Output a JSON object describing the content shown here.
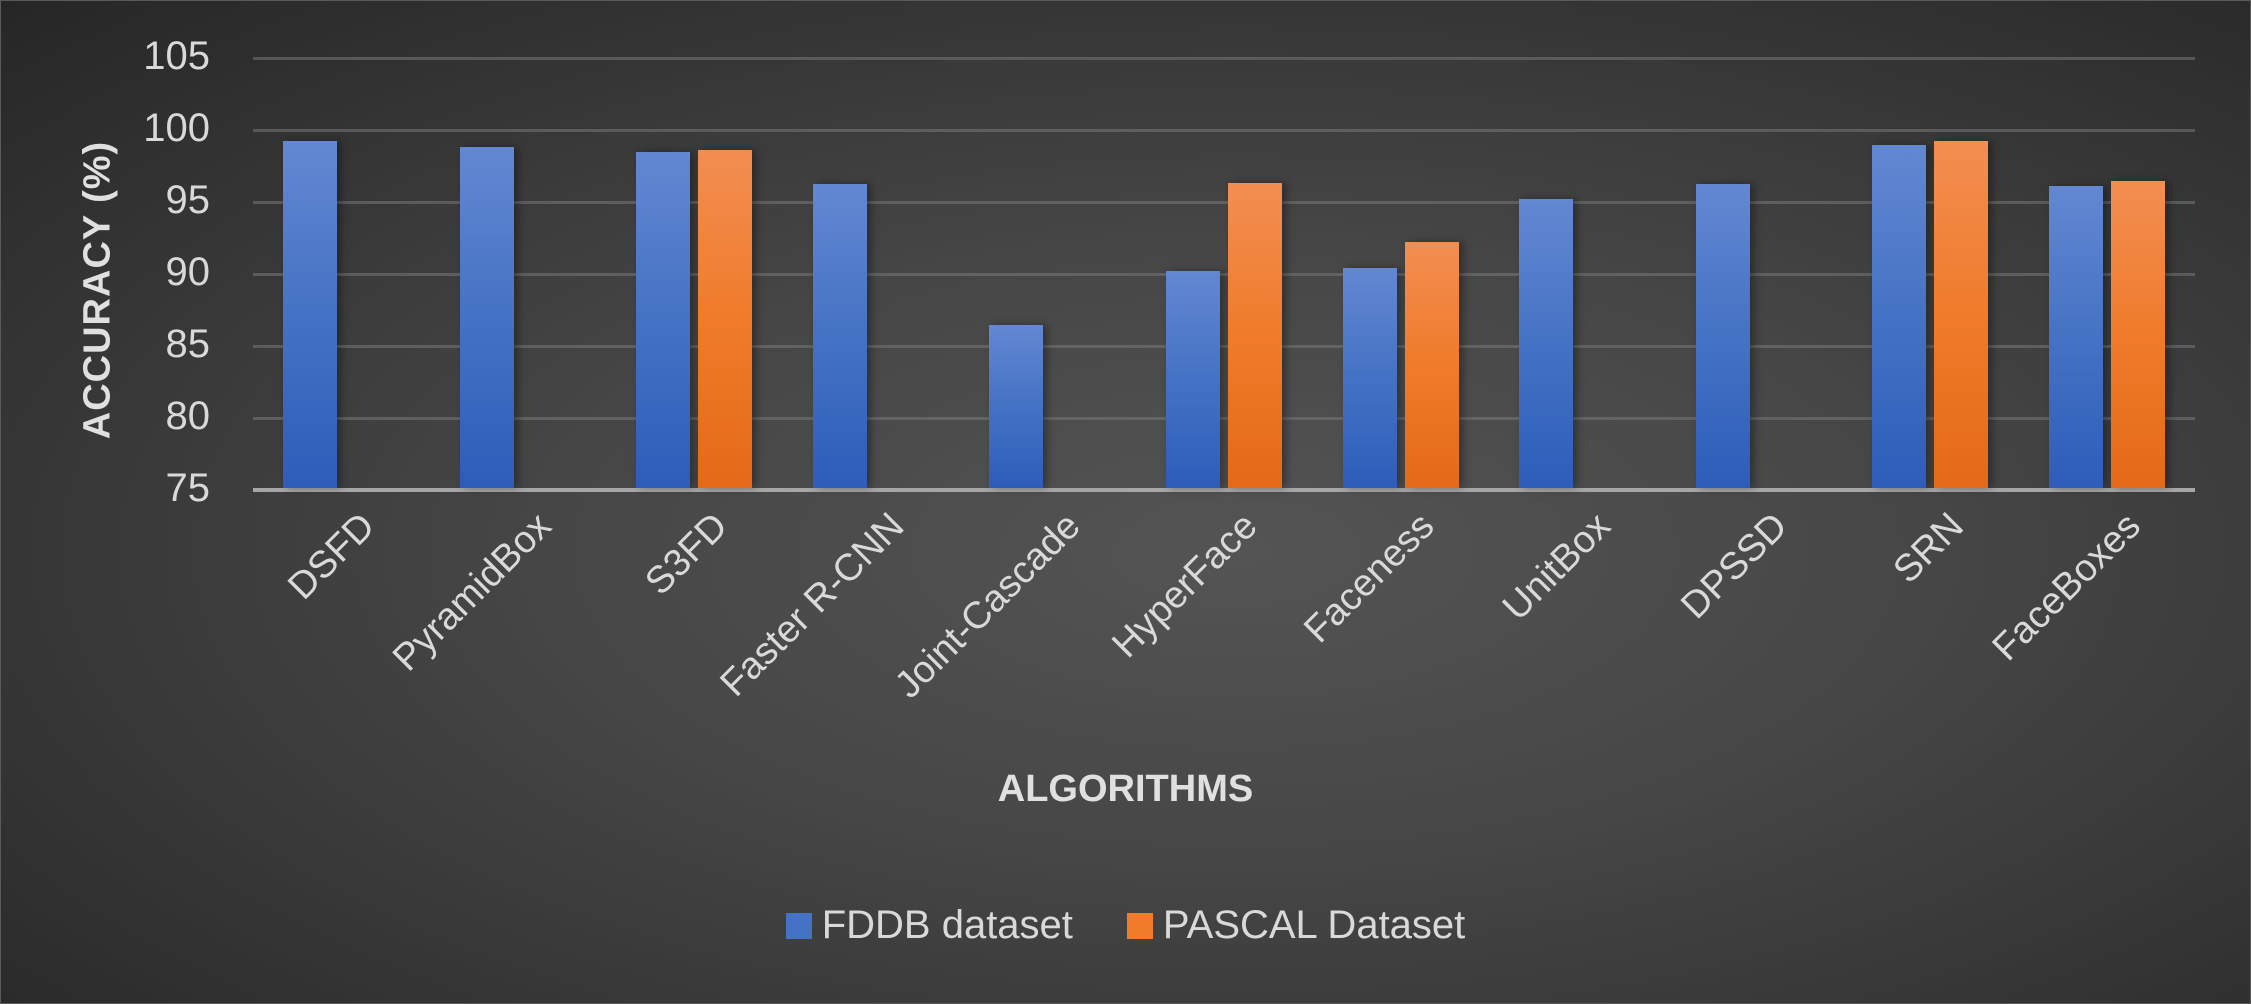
{
  "chart_data": {
    "type": "bar",
    "title": "",
    "xlabel": "ALGORITHMS",
    "ylabel": "ACCURACY (%)",
    "ylim": [
      75,
      105
    ],
    "yticks": [
      75,
      80,
      85,
      90,
      95,
      100,
      105
    ],
    "grid": true,
    "legend_position": "bottom",
    "categories": [
      "DSFD",
      "PyramidBox",
      "S3FD",
      "Faster R-CNN",
      "Joint-Cascade",
      "HyperFace",
      "Faceness",
      "UnitBox",
      "DPSSD",
      "SRN",
      "FaceBoxes"
    ],
    "series": [
      {
        "name": "FDDB dataset",
        "color": "#4472c4",
        "values": [
          99.1,
          98.7,
          98.3,
          96.1,
          86.3,
          90.1,
          90.3,
          95.1,
          96.1,
          98.8,
          96.0
        ]
      },
      {
        "name": "PASCAL Dataset",
        "color": "#f07b2a",
        "values": [
          null,
          null,
          98.5,
          null,
          null,
          96.2,
          92.1,
          null,
          null,
          99.1,
          96.3
        ]
      }
    ]
  },
  "axes": {
    "xlabel": "ALGORITHMS",
    "ylabel": "ACCURACY (%)",
    "yticks": [
      "105",
      "100",
      "95",
      "90",
      "85",
      "80",
      "75"
    ]
  },
  "legend": {
    "items": [
      {
        "label": "FDDB dataset",
        "color": "#4472c4"
      },
      {
        "label": "PASCAL Dataset",
        "color": "#f07b2a"
      }
    ]
  }
}
